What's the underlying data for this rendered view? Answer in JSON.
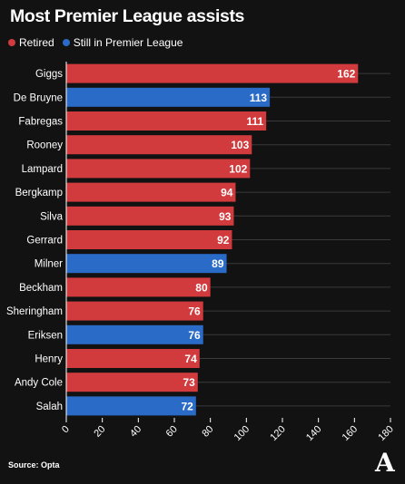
{
  "chart_data": {
    "type": "bar",
    "orientation": "horizontal",
    "title": "Most Premier League assists",
    "legend": [
      {
        "label": "Retired",
        "color": "#d23b3d"
      },
      {
        "label": "Still in Premier League",
        "color": "#2a6bc8"
      }
    ],
    "categories": [
      "Giggs",
      "De Bruyne",
      "Fabregas",
      "Rooney",
      "Lampard",
      "Bergkamp",
      "Silva",
      "Gerrard",
      "Milner",
      "Beckham",
      "Sheringham",
      "Eriksen",
      "Henry",
      "Andy Cole",
      "Salah"
    ],
    "values": [
      162,
      113,
      111,
      103,
      102,
      94,
      93,
      92,
      89,
      80,
      76,
      76,
      74,
      73,
      72
    ],
    "status": [
      "Retired",
      "Still in Premier League",
      "Retired",
      "Retired",
      "Retired",
      "Retired",
      "Retired",
      "Retired",
      "Still in Premier League",
      "Retired",
      "Retired",
      "Still in Premier League",
      "Retired",
      "Retired",
      "Still in Premier League"
    ],
    "xlim": [
      0,
      180
    ],
    "xticks": [
      0,
      20,
      40,
      60,
      80,
      100,
      120,
      140,
      160,
      180
    ],
    "grid": true,
    "legend_position": "top-left"
  },
  "source": "Source: Opta",
  "logo": "A"
}
